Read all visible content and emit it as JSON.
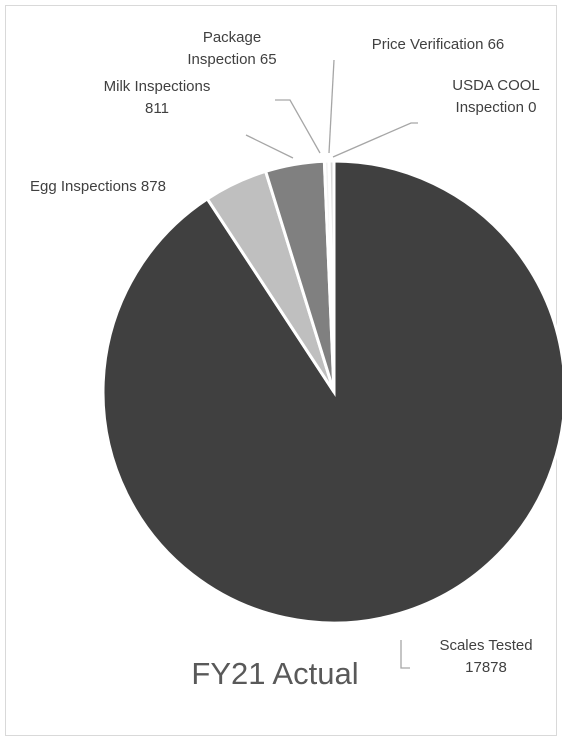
{
  "chart_data": {
    "type": "pie",
    "title": "FY21 Actual",
    "slices": [
      {
        "label": "Scales Tested",
        "value": 17878,
        "color": "#404040",
        "label_lines": [
          "Scales Tested",
          "17878"
        ]
      },
      {
        "label": "Egg Inspections",
        "value": 878,
        "color": "#bfbfbf",
        "label_lines": [
          "Egg Inspections 878"
        ]
      },
      {
        "label": "Milk Inspections",
        "value": 811,
        "color": "#808080",
        "label_lines": [
          "Milk Inspections",
          "811"
        ]
      },
      {
        "label": "Package Inspection",
        "value": 65,
        "color": "#f2f2f2",
        "label_lines": [
          "Package",
          "Inspection 65"
        ]
      },
      {
        "label": "Price Verification",
        "value": 66,
        "color": "#d9d9d9",
        "label_lines": [
          "Price Verification 66"
        ]
      },
      {
        "label": "USDA COOL Inspection",
        "value": 0,
        "color": "#7f7f7f",
        "label_lines": [
          "USDA COOL",
          "Inspection 0"
        ]
      }
    ],
    "legend": "none"
  }
}
